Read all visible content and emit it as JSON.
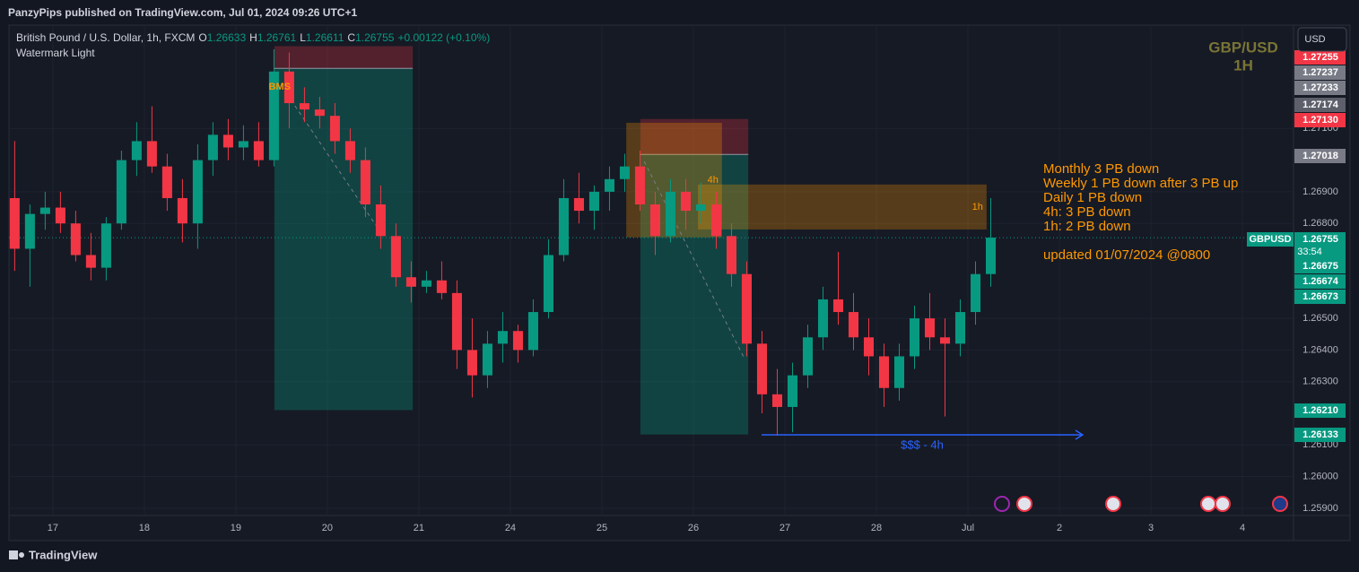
{
  "header": {
    "published": "PanzyPips published on TradingView.com, Jul 01, 2024 09:26 UTC+1",
    "currency": "USD",
    "brand": "TradingView"
  },
  "chart_data": {
    "type": "candlestick",
    "symbol": "British Pound / U.S. Dollar, 1h, FXCM",
    "ohlc": [
      {
        "k": "O",
        "v": "1.26633"
      },
      {
        "k": "H",
        "v": "1.26761"
      },
      {
        "k": "L",
        "v": "1.26611"
      },
      {
        "k": "C",
        "v": "1.26755"
      }
    ],
    "change": "+0.00122 (+0.10%)",
    "indicator": "Watermark Light",
    "watermark": [
      "GBP/USD",
      "1H"
    ],
    "up_color": "#089981",
    "down_color": "#f23645",
    "x": [
      -10,
      -6,
      -2,
      2,
      6,
      10,
      14,
      18,
      22,
      26,
      30,
      34,
      38,
      42,
      46,
      50,
      54,
      58,
      62,
      66,
      70,
      74,
      78,
      82,
      86,
      90,
      94,
      98,
      102,
      106,
      110,
      114,
      118,
      122,
      126,
      130,
      134,
      138,
      142,
      146,
      150,
      154,
      158,
      162,
      166,
      170,
      174,
      178,
      182,
      186,
      190,
      194,
      198,
      202,
      206,
      210,
      214,
      218,
      222,
      226,
      230,
      234,
      238,
      242,
      246
    ],
    "open": [
      1.2688,
      1.2672,
      1.2683,
      1.2685,
      1.268,
      1.267,
      1.2666,
      1.268,
      1.27,
      1.2706,
      1.2698,
      1.2688,
      1.268,
      1.27,
      1.2708,
      1.2704,
      1.2706,
      1.27,
      1.2728,
      1.2718,
      1.2716,
      1.2714,
      1.2706,
      1.27,
      1.2686,
      1.2676,
      1.2663,
      1.266,
      1.2662,
      1.2658,
      1.264,
      1.2632,
      1.2642,
      1.2646,
      1.264,
      1.2652,
      1.267,
      1.2688,
      1.2684,
      1.269,
      1.2694,
      1.2698,
      1.2686,
      1.2676,
      1.269,
      1.2684,
      1.2686,
      1.2676,
      1.2664,
      1.2642,
      1.2626,
      1.2622,
      1.2632,
      1.2644,
      1.2656,
      1.2652,
      1.2644,
      1.2638,
      1.2628,
      1.2638,
      1.265,
      1.2644,
      1.2642,
      1.2652,
      1.2664
    ],
    "high": [
      1.2706,
      1.2686,
      1.269,
      1.269,
      1.2684,
      1.2677,
      1.2682,
      1.2703,
      1.2712,
      1.2717,
      1.2702,
      1.2694,
      1.2705,
      1.2712,
      1.2713,
      1.2711,
      1.2712,
      1.2735,
      1.2734,
      1.2723,
      1.272,
      1.2718,
      1.271,
      1.2704,
      1.2692,
      1.268,
      1.2668,
      1.2665,
      1.2668,
      1.2662,
      1.265,
      1.2646,
      1.2652,
      1.2648,
      1.2656,
      1.2675,
      1.2694,
      1.2696,
      1.2692,
      1.2698,
      1.2702,
      1.2703,
      1.269,
      1.2694,
      1.2694,
      1.2693,
      1.269,
      1.268,
      1.2668,
      1.2646,
      1.2634,
      1.2636,
      1.2648,
      1.266,
      1.2671,
      1.2658,
      1.265,
      1.2642,
      1.2642,
      1.2654,
      1.2658,
      1.265,
      1.2656,
      1.2668,
      1.2688
    ],
    "low": [
      1.2665,
      1.266,
      1.2678,
      1.2677,
      1.2668,
      1.2662,
      1.2662,
      1.2678,
      1.2695,
      1.2696,
      1.2684,
      1.2674,
      1.2672,
      1.2695,
      1.27,
      1.27,
      1.2698,
      1.2698,
      1.271,
      1.2712,
      1.271,
      1.2702,
      1.2696,
      1.2682,
      1.2672,
      1.266,
      1.2655,
      1.2658,
      1.2656,
      1.2634,
      1.2625,
      1.2628,
      1.2636,
      1.2636,
      1.2638,
      1.265,
      1.2668,
      1.268,
      1.2678,
      1.2684,
      1.269,
      1.2684,
      1.267,
      1.2674,
      1.2678,
      1.268,
      1.2672,
      1.266,
      1.2638,
      1.262,
      1.2613,
      1.2614,
      1.2628,
      1.264,
      1.2648,
      1.264,
      1.2632,
      1.2622,
      1.2624,
      1.2634,
      1.264,
      1.2619,
      1.2638,
      1.2648,
      1.266
    ],
    "close": [
      1.2672,
      1.2683,
      1.2685,
      1.268,
      1.267,
      1.2666,
      1.268,
      1.27,
      1.2706,
      1.2698,
      1.2688,
      1.268,
      1.27,
      1.2708,
      1.2704,
      1.2706,
      1.27,
      1.2728,
      1.2718,
      1.2716,
      1.2714,
      1.2706,
      1.27,
      1.2686,
      1.2676,
      1.2663,
      1.266,
      1.2662,
      1.2658,
      1.264,
      1.2632,
      1.2642,
      1.2646,
      1.264,
      1.2652,
      1.267,
      1.2688,
      1.2684,
      1.269,
      1.2694,
      1.2698,
      1.2686,
      1.2676,
      1.269,
      1.2684,
      1.2686,
      1.2676,
      1.2664,
      1.2642,
      1.2626,
      1.2622,
      1.2632,
      1.2644,
      1.2656,
      1.2652,
      1.2644,
      1.2638,
      1.2628,
      1.2638,
      1.265,
      1.2644,
      1.2642,
      1.2652,
      1.2664,
      1.26755
    ],
    "xlim": [
      -11.5,
      325.4
    ],
    "ylim": [
      1.25877,
      1.27421
    ],
    "xticks": [
      {
        "value": 0,
        "label": "17"
      },
      {
        "value": 24,
        "label": "18"
      },
      {
        "value": 48,
        "label": "19"
      },
      {
        "value": 72,
        "label": "20"
      },
      {
        "value": 96,
        "label": "21"
      },
      {
        "value": 120,
        "label": "24"
      },
      {
        "value": 144,
        "label": "25"
      },
      {
        "value": 168,
        "label": "26"
      },
      {
        "value": 192,
        "label": "27"
      },
      {
        "value": 216,
        "label": "28"
      },
      {
        "value": 240,
        "label": "Jul"
      },
      {
        "value": 264,
        "label": "2"
      },
      {
        "value": 288,
        "label": "3"
      },
      {
        "value": 312,
        "label": "4"
      }
    ],
    "yticks": [
      {
        "value": 1.271,
        "label": "1.27100"
      },
      {
        "value": 1.269,
        "label": "1.26900"
      },
      {
        "value": 1.268,
        "label": "1.26800"
      },
      {
        "value": 1.265,
        "label": "1.26500"
      },
      {
        "value": 1.264,
        "label": "1.26400"
      },
      {
        "value": 1.263,
        "label": "1.26300"
      },
      {
        "value": 1.261,
        "label": "1.26100"
      },
      {
        "value": 1.26,
        "label": "1.26000"
      },
      {
        "value": 1.259,
        "label": "1.25900"
      }
    ],
    "grid": true,
    "price_labels": [
      {
        "price": 1.27255,
        "color": "#f23645"
      },
      {
        "price": 1.27237,
        "color": "#787b86"
      },
      {
        "price": 1.27233,
        "color": "#787b86"
      },
      {
        "price": 1.27174,
        "color": "#5d606b"
      },
      {
        "price": {
          "value": 1.2713,
          "label": "1.27130"
        },
        "color": "#f23645"
      },
      {
        "price": 1.27018,
        "color": "#787b86"
      },
      {
        "price": 1.26755,
        "color": "#089981",
        "tag": "GBPUSD",
        "timer": "33:54"
      },
      {
        "price": 1.26675,
        "color": "#089981"
      },
      {
        "price": 1.26674,
        "color": "#089981"
      },
      {
        "price": 1.26673,
        "color": "#089981"
      },
      {
        "price": {
          "value": 1.2621,
          "label": "1.26210"
        },
        "color": "#089981"
      },
      {
        "price": 1.26133,
        "color": "#089981"
      }
    ],
    "positions": [
      {
        "x": [
          58.1,
          94.4
        ],
        "stop": 1.2736,
        "entry": 1.2729,
        "target": 1.2621
      },
      {
        "x": [
          154.1,
          182.4
        ],
        "stop": 1.2713,
        "entry": 1.27018,
        "target": 1.26133
      }
    ],
    "zones": [
      {
        "label": "4h",
        "x": [
          150.4,
          175.5
        ],
        "y": [
          1.26756,
          1.27118
        ]
      },
      {
        "label": "1h",
        "x": [
          169.2,
          244.9
        ],
        "y": [
          1.26781,
          1.26923
        ]
      }
    ],
    "trendlines": [
      {
        "x": [
          61.4,
          86.1
        ],
        "y": [
          1.27209,
          1.2677
        ]
      },
      {
        "x": [
          155.1,
          181.4
        ],
        "y": [
          1.26996,
          1.26373
        ]
      }
    ],
    "arrow": {
      "label": "$$$ - 4h",
      "x": [
        185.9,
        270.1
      ],
      "y": 1.26132
    },
    "marker": {
      "label": "BMS",
      "x": 59.5,
      "y": 1.27231
    },
    "notes": [
      "Monthly 3 PB down",
      "Weekly 1 PB down after 3 PB up",
      "Daily 1 PB down",
      "4h: 3 PB down",
      "1h: 2 PB down",
      "updated 01/07/2024 @0800"
    ]
  }
}
